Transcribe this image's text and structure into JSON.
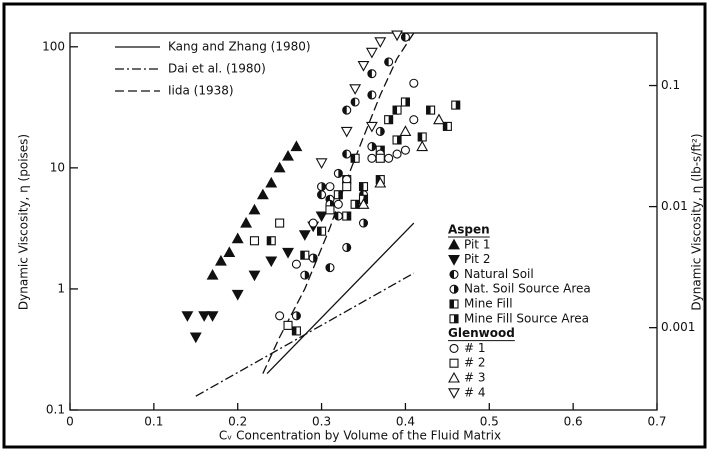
{
  "chart_data": {
    "type": "scatter",
    "xlabel": "Cᵥ Concentration by Volume of the Fluid Matrix",
    "ylabel": "Dynamic Viscosity, η (poises)",
    "y2label": "Dynamic Viscosity, η (lb-s/ft²)",
    "xlim": [
      0,
      0.7
    ],
    "xticks": [
      0,
      0.1,
      0.2,
      0.3,
      0.4,
      0.5,
      0.6,
      0.7
    ],
    "ylim": [
      0.1,
      130
    ],
    "yticks": [
      100,
      10,
      1,
      0.1
    ],
    "ylog": true,
    "y2lim": [
      0.0002089,
      0.2716
    ],
    "y2ticks": [
      0.1,
      0.01,
      0.001
    ],
    "y2log": true,
    "lines": [
      {
        "name": "Kang and Zhang (1980)",
        "dash": "solid",
        "x": [
          0.235,
          0.41
        ],
        "values": [
          0.2,
          3.5
        ]
      },
      {
        "name": "Dai et al. (1980)",
        "dash": "dashdot",
        "x": [
          0.15,
          0.41
        ],
        "values": [
          0.13,
          1.35
        ]
      },
      {
        "name": "Iida (1938)",
        "dash": "dashed",
        "x": [
          0.23,
          0.25,
          0.28,
          0.31,
          0.33,
          0.35,
          0.37,
          0.39,
          0.41
        ],
        "values": [
          0.2,
          0.4,
          1,
          3.2,
          8,
          18,
          40,
          80,
          130
        ]
      }
    ],
    "series": [
      {
        "group": "Aspen",
        "name": "Pit 1",
        "marker": "tri-up-filled",
        "x": [
          0.17,
          0.18,
          0.19,
          0.2,
          0.21,
          0.22,
          0.23,
          0.24,
          0.25,
          0.26,
          0.27
        ],
        "values": [
          1.3,
          1.7,
          2,
          2.6,
          3.5,
          4.5,
          6,
          7.5,
          10,
          12.5,
          15
        ]
      },
      {
        "group": "Aspen",
        "name": "Pit 2",
        "marker": "tri-down-filled",
        "x": [
          0.14,
          0.15,
          0.16,
          0.17,
          0.2,
          0.22,
          0.24,
          0.26,
          0.28,
          0.29,
          0.3
        ],
        "values": [
          0.6,
          0.4,
          0.6,
          0.6,
          0.9,
          1.3,
          1.7,
          2,
          2.8,
          3.3,
          4
        ]
      },
      {
        "group": "Aspen",
        "name": "Natural Soil",
        "marker": "circle-left",
        "x": [
          0.3,
          0.31,
          0.32,
          0.33,
          0.34,
          0.36,
          0.36,
          0.38,
          0.4,
          0.33,
          0.35,
          0.31
        ],
        "values": [
          6,
          5.5,
          4,
          30,
          35,
          40,
          60,
          75,
          120,
          13,
          6,
          1.5
        ]
      },
      {
        "group": "Aspen",
        "name": "Nat. Soil Source Area",
        "marker": "circle-right",
        "x": [
          0.27,
          0.28,
          0.29,
          0.3,
          0.31,
          0.33,
          0.35,
          0.32,
          0.34,
          0.36,
          0.37,
          0.39
        ],
        "values": [
          0.6,
          1.3,
          1.8,
          7,
          5,
          2.2,
          3.5,
          9,
          12,
          15,
          20,
          30
        ]
      },
      {
        "group": "Aspen",
        "name": "Mine Fill",
        "marker": "square-left",
        "x": [
          0.24,
          0.27,
          0.28,
          0.3,
          0.33,
          0.34,
          0.35,
          0.37,
          0.39,
          0.42,
          0.43,
          0.45
        ],
        "values": [
          2.5,
          0.45,
          1.9,
          3,
          8,
          12,
          7,
          8,
          30,
          18,
          30,
          22
        ]
      },
      {
        "group": "Aspen",
        "name": "Mine Fill  Source Area",
        "marker": "square-right",
        "x": [
          0.32,
          0.33,
          0.34,
          0.35,
          0.37,
          0.38,
          0.39,
          0.4,
          0.46
        ],
        "values": [
          6,
          4,
          5,
          5.5,
          14,
          25,
          17,
          35,
          33
        ]
      },
      {
        "group": "Glenwood",
        "name": "# 1",
        "marker": "circle-open",
        "x": [
          0.25,
          0.26,
          0.27,
          0.29,
          0.31,
          0.32,
          0.33,
          0.36,
          0.37,
          0.38,
          0.39,
          0.4,
          0.41,
          0.41
        ],
        "values": [
          0.6,
          0.5,
          1.6,
          3.5,
          7,
          5,
          8,
          12,
          13,
          12,
          13,
          14,
          25,
          50
        ]
      },
      {
        "group": "Glenwood",
        "name": "# 2",
        "marker": "square-open",
        "x": [
          0.22,
          0.25,
          0.26,
          0.31,
          0.33,
          0.37
        ],
        "values": [
          2.5,
          3.5,
          0.5,
          4.5,
          7,
          12
        ]
      },
      {
        "group": "Glenwood",
        "name": "# 3",
        "marker": "tri-up-open",
        "x": [
          0.35,
          0.37,
          0.4,
          0.42,
          0.44
        ],
        "values": [
          5,
          7.5,
          20,
          15,
          25
        ]
      },
      {
        "group": "Glenwood",
        "name": "# 4",
        "marker": "tri-down-open",
        "x": [
          0.3,
          0.33,
          0.34,
          0.35,
          0.36,
          0.37,
          0.39,
          0.36
        ],
        "values": [
          11,
          20,
          45,
          70,
          90,
          110,
          125,
          22
        ]
      }
    ]
  }
}
